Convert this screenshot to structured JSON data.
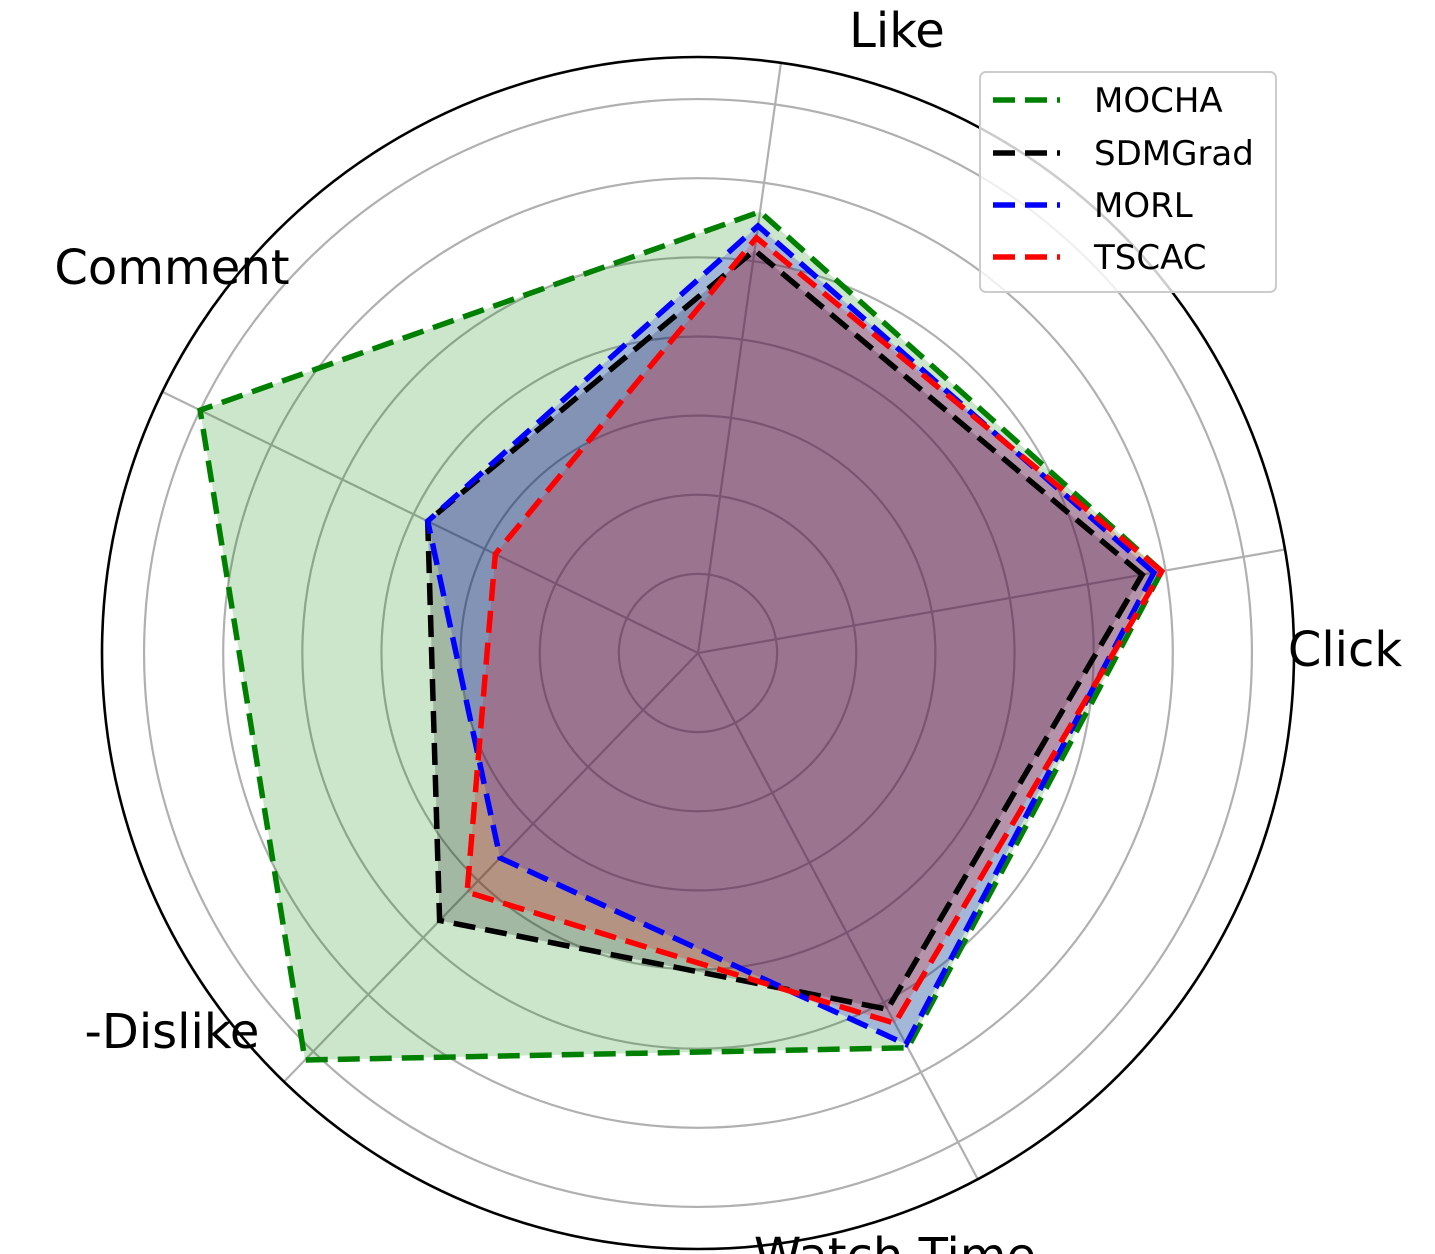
{
  "chart_data": {
    "type": "radar",
    "axes": [
      "Click",
      "Like",
      "Comment",
      "-Dislike",
      "Watch Time"
    ],
    "rmax": 7,
    "grid_rings": [
      1,
      2,
      3,
      4,
      5,
      6,
      7
    ],
    "grid": true,
    "legend_position": "top-right",
    "series": [
      {
        "name": "MOCHA",
        "values": [
          5.95,
          5.63,
          7.0,
          7.15,
          5.65
        ],
        "color": "#008000"
      },
      {
        "name": "SDMGrad",
        "values": [
          5.7,
          5.14,
          3.8,
          4.7,
          5.1
        ],
        "color": "#000000"
      },
      {
        "name": "MORL",
        "values": [
          5.85,
          5.45,
          3.8,
          3.6,
          5.6
        ],
        "color": "#0000ff"
      },
      {
        "name": "TSCAC",
        "values": [
          5.95,
          5.3,
          2.85,
          4.2,
          5.3
        ],
        "color": "#ff0000"
      }
    ]
  }
}
